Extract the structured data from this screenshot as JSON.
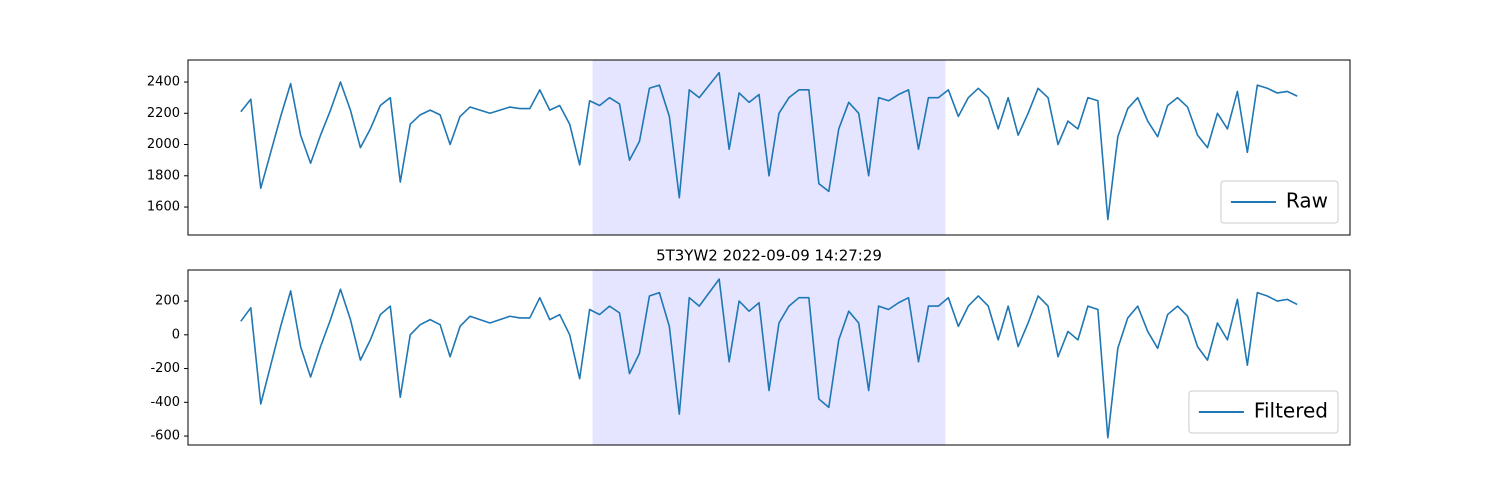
{
  "chart_data": [
    {
      "type": "line",
      "legend": "lower right",
      "span": [
        35.3,
        70.7
      ],
      "span_color": "#e5e5ff",
      "xlim": [
        -5.3,
        111.3
      ],
      "ylim": [
        1421,
        2541
      ],
      "yticks": [
        1600,
        1800,
        2000,
        2200,
        2400
      ],
      "series": [
        {
          "name": "Raw",
          "color": "#1f77b4",
          "values": [
            2210,
            2290,
            1720,
            1950,
            2180,
            2390,
            2060,
            1880,
            2060,
            2220,
            2400,
            2220,
            1980,
            2100,
            2250,
            2300,
            1760,
            2130,
            2190,
            2220,
            2190,
            2000,
            2180,
            2240,
            2220,
            2200,
            2220,
            2240,
            2230,
            2230,
            2350,
            2220,
            2250,
            2130,
            1870,
            2280,
            2250,
            2300,
            2260,
            1900,
            2020,
            2360,
            2380,
            2180,
            1660,
            2350,
            2300,
            2380,
            2460,
            1970,
            2330,
            2270,
            2320,
            1800,
            2200,
            2300,
            2350,
            2350,
            1750,
            1700,
            2100,
            2270,
            2200,
            1800,
            2300,
            2280,
            2320,
            2350,
            1970,
            2300,
            2300,
            2350,
            2180,
            2300,
            2360,
            2300,
            2100,
            2300,
            2060,
            2200,
            2360,
            2300,
            2000,
            2150,
            2100,
            2300,
            2280,
            1520,
            2050,
            2230,
            2300,
            2150,
            2050,
            2250,
            2300,
            2240,
            2060,
            1980,
            2200,
            2100,
            2340,
            1950,
            2380,
            2360,
            2330,
            2340,
            2310
          ]
        }
      ]
    },
    {
      "type": "line",
      "title": "5T3YW2 2022-09-09 14:27:29",
      "legend": "lower right",
      "span": [
        35.3,
        70.7
      ],
      "span_color": "#e5e5ff",
      "xlim": [
        -5.3,
        111.3
      ],
      "ylim": [
        -653,
        384
      ],
      "yticks": [
        -600,
        -400,
        -200,
        0,
        200
      ],
      "series": [
        {
          "name": "Filtered",
          "color": "#1f77b4",
          "values": [
            80,
            160,
            -410,
            -180,
            50,
            260,
            -70,
            -250,
            -70,
            90,
            270,
            90,
            -150,
            -30,
            120,
            170,
            -370,
            0,
            60,
            90,
            60,
            -130,
            50,
            110,
            90,
            70,
            90,
            110,
            100,
            100,
            220,
            90,
            120,
            0,
            -260,
            150,
            120,
            170,
            130,
            -230,
            -110,
            230,
            250,
            50,
            -470,
            220,
            170,
            250,
            330,
            -160,
            200,
            140,
            190,
            -330,
            70,
            170,
            220,
            220,
            -380,
            -430,
            -30,
            140,
            70,
            -330,
            170,
            150,
            190,
            220,
            -160,
            170,
            170,
            220,
            50,
            170,
            230,
            170,
            -30,
            170,
            -70,
            70,
            230,
            170,
            -130,
            20,
            -30,
            170,
            150,
            -610,
            -80,
            100,
            170,
            20,
            -80,
            120,
            170,
            110,
            -70,
            -150,
            70,
            -30,
            210,
            -180,
            250,
            230,
            200,
            210,
            180
          ]
        }
      ]
    }
  ]
}
